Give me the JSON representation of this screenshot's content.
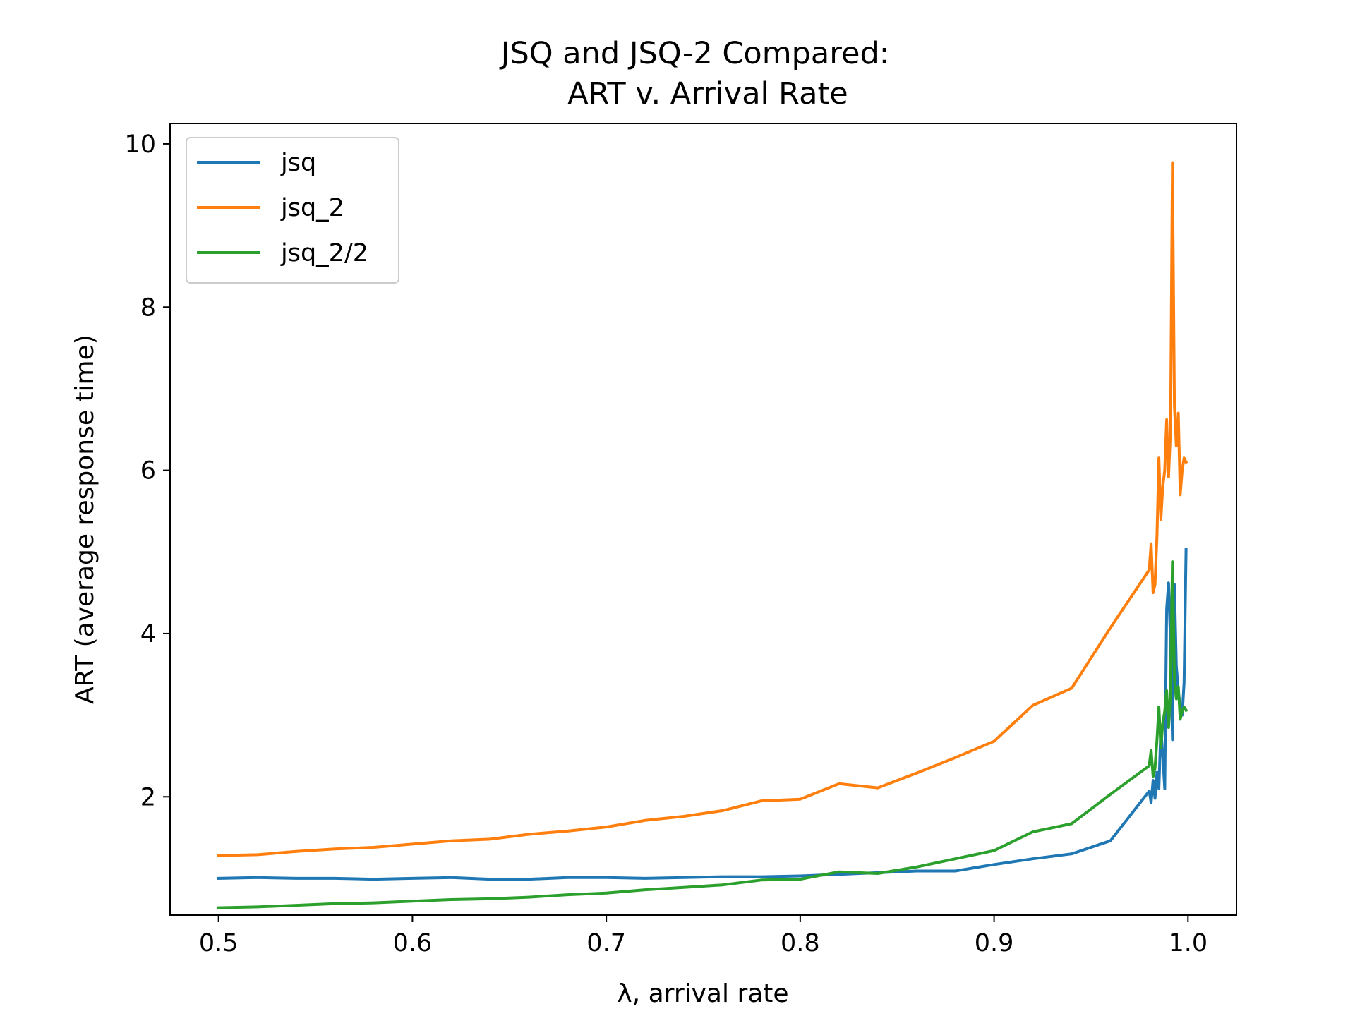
{
  "chart_data": {
    "type": "line",
    "title": "JSQ and JSQ-2 Compared:",
    "subtitle": "ART v. Arrival Rate",
    "xlabel": "λ, arrival rate",
    "ylabel": "ART (average response time)",
    "xlim": [
      0.475,
      1.025
    ],
    "ylim": [
      0.55,
      10.25
    ],
    "xticks": [
      0.5,
      0.6,
      0.7,
      0.8,
      0.9,
      1.0
    ],
    "xtick_labels": [
      "0.5",
      "0.6",
      "0.7",
      "0.8",
      "0.9",
      "1.0"
    ],
    "yticks": [
      2,
      4,
      6,
      8,
      10
    ],
    "ytick_labels": [
      "2",
      "4",
      "6",
      "8",
      "10"
    ],
    "grid": false,
    "legend_position": "top-left",
    "series": [
      {
        "name": "jsq",
        "color": "#1f77b4",
        "x": [
          0.5,
          0.52,
          0.54,
          0.56,
          0.58,
          0.6,
          0.62,
          0.64,
          0.66,
          0.68,
          0.7,
          0.72,
          0.74,
          0.76,
          0.78,
          0.8,
          0.82,
          0.84,
          0.86,
          0.88,
          0.9,
          0.92,
          0.94,
          0.96,
          0.98,
          0.981,
          0.982,
          0.983,
          0.984,
          0.985,
          0.986,
          0.987,
          0.988,
          0.989,
          0.99,
          0.991,
          0.992,
          0.993,
          0.994,
          0.995,
          0.996,
          0.997,
          0.998,
          0.999
        ],
        "y": [
          1.0,
          1.01,
          1.0,
          1.0,
          0.99,
          1.0,
          1.01,
          0.99,
          0.99,
          1.01,
          1.01,
          1.0,
          1.01,
          1.02,
          1.02,
          1.03,
          1.05,
          1.07,
          1.09,
          1.09,
          1.17,
          1.24,
          1.3,
          1.46,
          2.07,
          1.93,
          2.2,
          1.98,
          2.3,
          2.1,
          2.85,
          2.5,
          2.1,
          4.3,
          4.62,
          3.9,
          2.7,
          4.6,
          3.6,
          3.3,
          3.1,
          3.0,
          3.4,
          5.03
        ]
      },
      {
        "name": "jsq_2",
        "color": "#ff7f0e",
        "x": [
          0.5,
          0.52,
          0.54,
          0.56,
          0.58,
          0.6,
          0.62,
          0.64,
          0.66,
          0.68,
          0.7,
          0.72,
          0.74,
          0.76,
          0.78,
          0.8,
          0.82,
          0.84,
          0.86,
          0.88,
          0.9,
          0.92,
          0.94,
          0.96,
          0.98,
          0.981,
          0.982,
          0.983,
          0.984,
          0.985,
          0.986,
          0.987,
          0.988,
          0.989,
          0.99,
          0.991,
          0.992,
          0.993,
          0.994,
          0.995,
          0.996,
          0.997,
          0.998,
          0.999
        ],
        "y": [
          1.28,
          1.29,
          1.33,
          1.36,
          1.38,
          1.42,
          1.46,
          1.48,
          1.54,
          1.58,
          1.63,
          1.71,
          1.76,
          1.83,
          1.95,
          1.97,
          2.16,
          2.11,
          2.29,
          2.48,
          2.68,
          3.12,
          3.33,
          4.07,
          4.78,
          5.1,
          4.5,
          4.6,
          5.2,
          6.15,
          5.4,
          5.8,
          6.0,
          6.62,
          5.92,
          6.5,
          9.77,
          6.8,
          6.3,
          6.7,
          5.7,
          6.0,
          6.15,
          6.1
        ]
      },
      {
        "name": "jsq_2/2",
        "color": "#2ca02c",
        "x": [
          0.5,
          0.52,
          0.54,
          0.56,
          0.58,
          0.6,
          0.62,
          0.64,
          0.66,
          0.68,
          0.7,
          0.72,
          0.74,
          0.76,
          0.78,
          0.8,
          0.82,
          0.84,
          0.86,
          0.88,
          0.9,
          0.92,
          0.94,
          0.96,
          0.98,
          0.981,
          0.982,
          0.983,
          0.984,
          0.985,
          0.986,
          0.987,
          0.988,
          0.989,
          0.99,
          0.991,
          0.992,
          0.993,
          0.994,
          0.995,
          0.996,
          0.997,
          0.998,
          0.999
        ],
        "y": [
          0.64,
          0.65,
          0.67,
          0.69,
          0.7,
          0.72,
          0.74,
          0.75,
          0.77,
          0.8,
          0.82,
          0.86,
          0.89,
          0.92,
          0.98,
          0.99,
          1.08,
          1.06,
          1.14,
          1.24,
          1.34,
          1.57,
          1.67,
          2.03,
          2.38,
          2.57,
          2.25,
          2.35,
          2.7,
          3.1,
          2.6,
          2.9,
          3.05,
          3.3,
          2.85,
          3.3,
          4.88,
          3.45,
          3.2,
          3.35,
          2.95,
          3.05,
          3.1,
          3.06
        ]
      }
    ]
  }
}
